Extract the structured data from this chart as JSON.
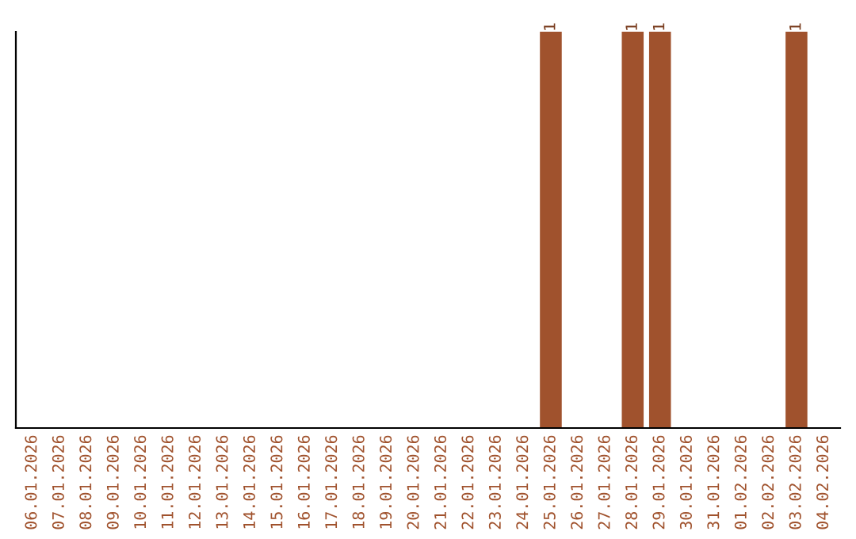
{
  "chart_data": {
    "type": "bar",
    "categories": [
      "06.01.2026",
      "07.01.2026",
      "08.01.2026",
      "09.01.2026",
      "10.01.2026",
      "11.01.2026",
      "12.01.2026",
      "13.01.2026",
      "14.01.2026",
      "15.01.2026",
      "16.01.2026",
      "17.01.2026",
      "18.01.2026",
      "19.01.2026",
      "20.01.2026",
      "21.01.2026",
      "22.01.2026",
      "23.01.2026",
      "24.01.2026",
      "25.01.2026",
      "26.01.2026",
      "27.01.2026",
      "28.01.2026",
      "29.01.2026",
      "30.01.2026",
      "31.01.2026",
      "01.02.2026",
      "02.02.2026",
      "03.02.2026",
      "04.02.2026"
    ],
    "values": [
      null,
      null,
      null,
      null,
      null,
      null,
      null,
      null,
      null,
      null,
      null,
      null,
      null,
      null,
      null,
      null,
      null,
      null,
      null,
      1,
      null,
      null,
      1,
      1,
      null,
      null,
      null,
      null,
      1,
      null
    ],
    "data_labels": true,
    "color": "#a0522d",
    "tick_labels": "x",
    "grid": false,
    "legend": false
  }
}
